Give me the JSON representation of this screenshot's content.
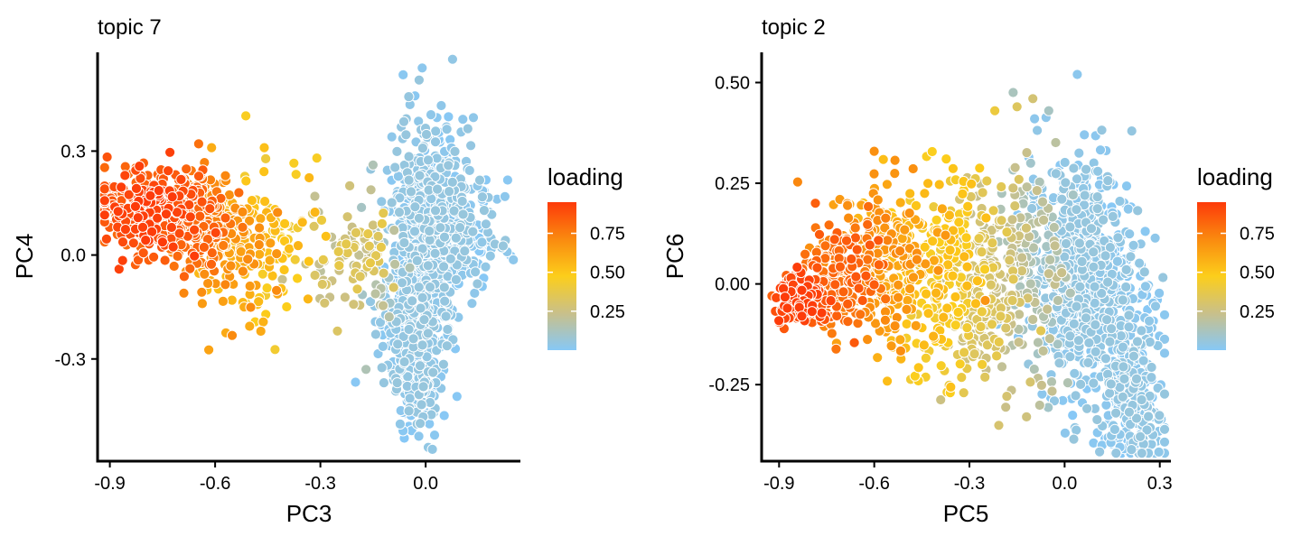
{
  "chart_data": [
    {
      "type": "scatter",
      "title": "topic 7",
      "xlabel": "PC3",
      "ylabel": "PC4",
      "xlim": [
        -0.935,
        0.27
      ],
      "ylim": [
        -0.595,
        0.585
      ],
      "xticks": [
        -0.9,
        -0.6,
        -0.3,
        0.0
      ],
      "xtick_labels": [
        "-0.9",
        "-0.6",
        "-0.3",
        "0.0"
      ],
      "yticks": [
        -0.3,
        0.0,
        0.3
      ],
      "ytick_labels": [
        "-0.3",
        "0.0",
        "0.3"
      ],
      "legend": {
        "title": "loading",
        "ticks": [
          0.25,
          0.5,
          0.75
        ],
        "tick_labels": [
          "0.25",
          "0.50",
          "0.75"
        ],
        "range": [
          0.0,
          0.95
        ],
        "placement": "right"
      },
      "clusters": [
        {
          "cx": -0.8,
          "cy": 0.13,
          "sx": 0.07,
          "sy": 0.06,
          "n": 320,
          "loading": [
            0.82,
            0.95
          ]
        },
        {
          "cx": -0.66,
          "cy": 0.1,
          "sx": 0.05,
          "sy": 0.07,
          "n": 220,
          "loading": [
            0.7,
            0.86
          ]
        },
        {
          "cx": -0.55,
          "cy": 0.03,
          "sx": 0.06,
          "sy": 0.09,
          "n": 150,
          "loading": [
            0.55,
            0.75
          ]
        },
        {
          "cx": -0.42,
          "cy": 0.05,
          "sx": 0.06,
          "sy": 0.1,
          "n": 70,
          "loading": [
            0.42,
            0.6
          ]
        },
        {
          "cx": -0.22,
          "cy": -0.01,
          "sx": 0.06,
          "sy": 0.08,
          "n": 80,
          "loading": [
            0.2,
            0.4
          ]
        },
        {
          "cx": -0.12,
          "cy": -0.06,
          "sx": 0.03,
          "sy": 0.08,
          "n": 20,
          "loading": [
            0.1,
            0.2
          ]
        },
        {
          "cx": 0.01,
          "cy": 0.12,
          "sx": 0.05,
          "sy": 0.14,
          "n": 420,
          "loading": [
            0.0,
            0.06
          ]
        },
        {
          "cx": 0.06,
          "cy": 0.06,
          "sx": 0.07,
          "sy": 0.09,
          "n": 340,
          "loading": [
            0.0,
            0.06
          ]
        },
        {
          "cx": -0.03,
          "cy": -0.18,
          "sx": 0.05,
          "sy": 0.11,
          "n": 380,
          "loading": [
            0.0,
            0.06
          ]
        },
        {
          "cx": -0.02,
          "cy": -0.38,
          "sx": 0.03,
          "sy": 0.07,
          "n": 130,
          "loading": [
            0.0,
            0.06
          ]
        }
      ],
      "extra_points": [
        {
          "x": -0.01,
          "y": 0.54,
          "loading": 0.02
        },
        {
          "x": -0.31,
          "y": 0.28,
          "loading": 0.48
        },
        {
          "x": -0.15,
          "y": 0.26,
          "loading": 0.15
        },
        {
          "x": -0.17,
          "y": -0.33,
          "loading": 0.15
        },
        {
          "x": -0.61,
          "y": 0.31,
          "loading": 0.62
        },
        {
          "x": -0.46,
          "y": 0.31,
          "loading": 0.55
        }
      ]
    },
    {
      "type": "scatter",
      "title": "topic 2",
      "xlabel": "PC5",
      "ylabel": "PC6",
      "xlim": [
        -0.955,
        0.335
      ],
      "ylim": [
        -0.44,
        0.575
      ],
      "xticks": [
        -0.9,
        -0.6,
        -0.3,
        0.0,
        0.3
      ],
      "xtick_labels": [
        "-0.9",
        "-0.6",
        "-0.3",
        "0.0",
        "0.3"
      ],
      "yticks": [
        -0.25,
        0.0,
        0.25,
        0.5
      ],
      "ytick_labels": [
        "-0.25",
        "0.00",
        "0.25",
        "0.50"
      ],
      "legend": {
        "title": "loading",
        "ticks": [
          0.25,
          0.5,
          0.75
        ],
        "tick_labels": [
          "0.25",
          "0.50",
          "0.75"
        ],
        "range": [
          0.0,
          0.95
        ],
        "placement": "right"
      },
      "clusters": [
        {
          "cx": -0.83,
          "cy": -0.04,
          "sx": 0.04,
          "sy": 0.03,
          "n": 180,
          "loading": [
            0.85,
            0.95
          ]
        },
        {
          "cx": -0.7,
          "cy": 0.03,
          "sx": 0.06,
          "sy": 0.07,
          "n": 170,
          "loading": [
            0.72,
            0.88
          ]
        },
        {
          "cx": -0.55,
          "cy": 0.05,
          "sx": 0.07,
          "sy": 0.1,
          "n": 200,
          "loading": [
            0.55,
            0.75
          ]
        },
        {
          "cx": -0.4,
          "cy": 0.02,
          "sx": 0.07,
          "sy": 0.12,
          "n": 210,
          "loading": [
            0.4,
            0.58
          ]
        },
        {
          "cx": -0.25,
          "cy": 0.0,
          "sx": 0.06,
          "sy": 0.14,
          "n": 230,
          "loading": [
            0.22,
            0.4
          ]
        },
        {
          "cx": -0.1,
          "cy": 0.02,
          "sx": 0.05,
          "sy": 0.15,
          "n": 120,
          "loading": [
            0.1,
            0.25
          ]
        },
        {
          "cx": 0.02,
          "cy": 0.08,
          "sx": 0.07,
          "sy": 0.12,
          "n": 400,
          "loading": [
            0.0,
            0.06
          ]
        },
        {
          "cx": 0.1,
          "cy": -0.05,
          "sx": 0.08,
          "sy": 0.13,
          "n": 400,
          "loading": [
            0.0,
            0.06
          ]
        },
        {
          "cx": 0.2,
          "cy": -0.25,
          "sx": 0.05,
          "sy": 0.09,
          "n": 220,
          "loading": [
            0.0,
            0.06
          ]
        },
        {
          "cx": 0.26,
          "cy": -0.37,
          "sx": 0.03,
          "sy": 0.04,
          "n": 60,
          "loading": [
            0.0,
            0.06
          ]
        }
      ],
      "extra_points": [
        {
          "x": 0.04,
          "y": 0.52,
          "loading": 0.02
        },
        {
          "x": -0.1,
          "y": 0.46,
          "loading": 0.3
        },
        {
          "x": -0.15,
          "y": 0.44,
          "loading": 0.35
        },
        {
          "x": -0.05,
          "y": 0.43,
          "loading": 0.12
        },
        {
          "x": -0.22,
          "y": 0.43,
          "loading": 0.42
        },
        {
          "x": -0.12,
          "y": -0.33,
          "loading": 0.28
        },
        {
          "x": -0.26,
          "y": -0.2,
          "loading": 0.45
        }
      ]
    }
  ]
}
